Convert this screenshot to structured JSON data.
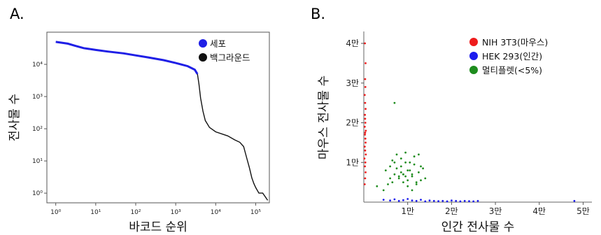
{
  "panels": {
    "a": "A.",
    "b": "B."
  },
  "chart_data": [
    {
      "type": "line",
      "xlabel": "바코드 순위",
      "ylabel": "전사물 수",
      "xscale": "log",
      "yscale": "log",
      "xlim": [
        1,
        200000
      ],
      "ylim": [
        0.5,
        100000
      ],
      "x_ticks": [
        "10⁰",
        "10¹",
        "10²",
        "10³",
        "10⁴",
        "10⁵"
      ],
      "y_ticks": [
        "10⁰",
        "10¹",
        "10²",
        "10³",
        "10⁴"
      ],
      "legend_position": "top-right",
      "series": [
        {
          "name": "세포",
          "color": "#1f1fe6",
          "x": [
            1,
            2,
            3,
            5,
            10,
            20,
            50,
            100,
            200,
            500,
            1000,
            2000,
            3000,
            3500
          ],
          "y": [
            50000,
            44000,
            38000,
            32000,
            28000,
            25000,
            22000,
            19000,
            16500,
            13500,
            11000,
            8800,
            6800,
            5000
          ]
        },
        {
          "name": "백그라운드",
          "color": "#111111",
          "x": [
            3500,
            3800,
            4200,
            4800,
            5500,
            7000,
            10000,
            20000,
            30000,
            40000,
            50000,
            60000,
            70000,
            80000,
            90000,
            100000,
            120000,
            150000,
            200000
          ],
          "y": [
            5000,
            2500,
            900,
            350,
            180,
            110,
            80,
            60,
            45,
            38,
            28,
            12,
            6,
            3,
            2,
            1.5,
            1,
            1,
            0.6
          ]
        }
      ]
    },
    {
      "type": "scatter",
      "xlabel": "인간 전사물 수",
      "ylabel": "마우스 전사물 수",
      "xlim": [
        0,
        52000
      ],
      "ylim": [
        0,
        43000
      ],
      "x_ticks": [
        {
          "label": "1만",
          "value": 10000
        },
        {
          "label": "2만",
          "value": 20000
        },
        {
          "label": "3만",
          "value": 30000
        },
        {
          "label": "4만",
          "value": 40000
        },
        {
          "label": "5만",
          "value": 50000
        }
      ],
      "y_ticks": [
        {
          "label": "1만",
          "value": 10000
        },
        {
          "label": "2만",
          "value": 20000
        },
        {
          "label": "3만",
          "value": 30000
        },
        {
          "label": "4만",
          "value": 40000
        }
      ],
      "legend_position": "top-right",
      "series": [
        {
          "name": "NIH 3T3(마우스)",
          "color": "#ee1c1c",
          "x": [
            200,
            300,
            400,
            250,
            350,
            150,
            450,
            300,
            200,
            400,
            350,
            250,
            300,
            450,
            200,
            350,
            300,
            250,
            400,
            300,
            200,
            350,
            300,
            400,
            250
          ],
          "y": [
            4500,
            6000,
            7500,
            9000,
            10000,
            11000,
            12000,
            13000,
            14000,
            15000,
            16000,
            17000,
            17500,
            18000,
            19000,
            20000,
            21000,
            22000,
            23500,
            25000,
            27000,
            29000,
            31000,
            35000,
            40000
          ]
        },
        {
          "name": "HEK 293(인간)",
          "color": "#1c1cee",
          "x": [
            4500,
            6000,
            7000,
            8000,
            9000,
            10000,
            11000,
            12000,
            13000,
            14000,
            15000,
            16000,
            17000,
            18000,
            19000,
            20000,
            21000,
            22000,
            23000,
            24000,
            25000,
            26000,
            48000
          ],
          "y": [
            600,
            400,
            700,
            300,
            500,
            800,
            400,
            300,
            600,
            200,
            400,
            300,
            250,
            300,
            200,
            400,
            300,
            200,
            300,
            250,
            200,
            300,
            300
          ]
        },
        {
          "name": "멀티플렛(<5%)",
          "color": "#1e8c1e",
          "x": [
            3000,
            4500,
            5500,
            6000,
            6500,
            7000,
            7500,
            8000,
            8500,
            9000,
            9500,
            10000,
            10500,
            11000,
            11500,
            12000,
            12500,
            13000,
            13500,
            14000,
            6500,
            7500,
            8500,
            9500,
            10500,
            11500,
            12500,
            5000,
            6000,
            7000,
            8000,
            9000,
            10000,
            11000,
            12000,
            13000,
            8500,
            9000,
            9500,
            10000,
            11000,
            7000
          ],
          "y": [
            4000,
            3000,
            4500,
            6000,
            5000,
            7000,
            8500,
            6500,
            9000,
            7000,
            10000,
            5500,
            8000,
            6500,
            9500,
            4500,
            7500,
            5500,
            8500,
            6000,
            10500,
            12000,
            11000,
            12500,
            10000,
            11500,
            12000,
            8000,
            9000,
            10000,
            6000,
            5000,
            4000,
            3000,
            5000,
            9000,
            7500,
            7000,
            6500,
            8000,
            7000,
            25000
          ]
        }
      ]
    }
  ]
}
